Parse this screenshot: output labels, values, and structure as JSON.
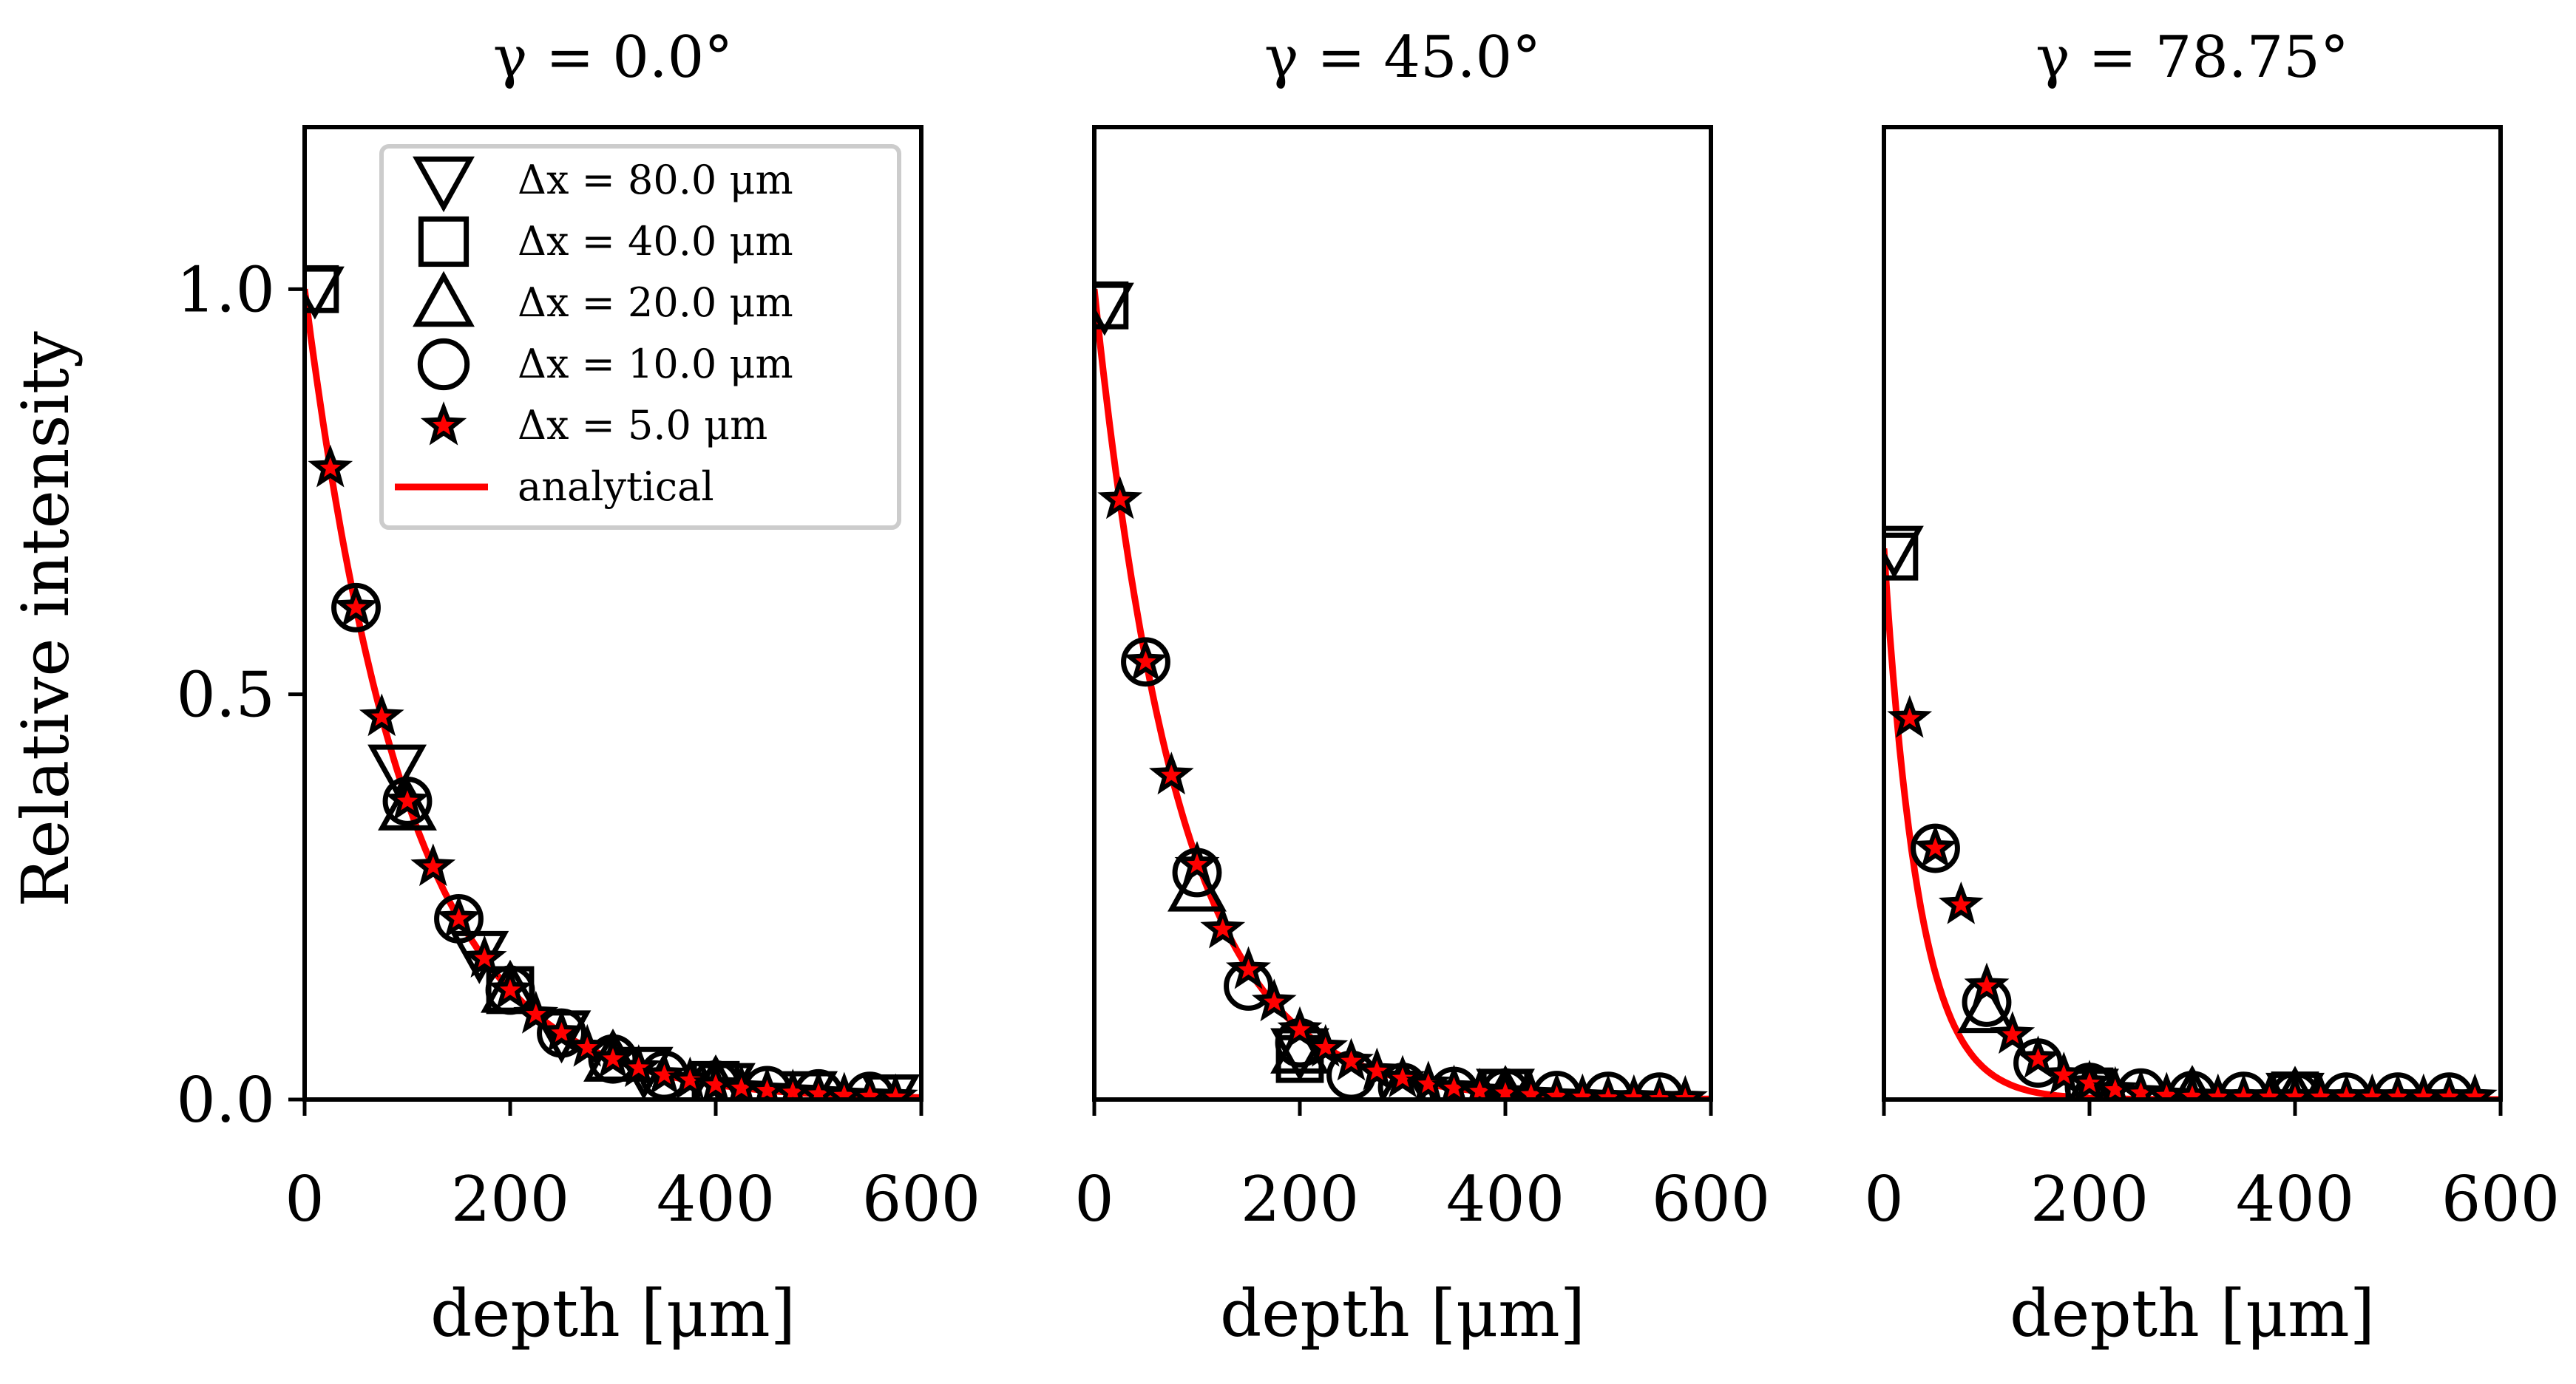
{
  "figure": {
    "ylabel": "Relative intensity",
    "xlabel": "depth [μm]"
  },
  "chart_data": [
    {
      "type": "scatter",
      "title": "γ = 0.0°",
      "xlabel": "depth [μm]",
      "ylabel": "Relative intensity",
      "xlim": [
        0,
        600
      ],
      "ylim": [
        0,
        1.2
      ],
      "xticks": [
        0,
        200,
        400,
        600
      ],
      "yticks": [
        0.0,
        0.5,
        1.0
      ],
      "xtick_labels": [
        "0",
        "200",
        "400",
        "600"
      ],
      "ytick_labels": [
        "0.0",
        "0.5",
        "1.0"
      ],
      "analytical": {
        "name": "analytical",
        "color": "#ff0000",
        "amplitude": 1.0,
        "decay_length_um": 100
      },
      "series": [
        {
          "name": "Δx = 80.0 μm",
          "marker": "triangle-down",
          "x": [
            10,
            90,
            170,
            250,
            330,
            410,
            490,
            570
          ],
          "y": [
            1.0,
            0.41,
            0.18,
            0.082,
            0.037,
            0.017,
            0.007,
            0.003
          ]
        },
        {
          "name": "Δx = 40.0 μm",
          "marker": "square",
          "x": [
            10,
            200,
            400
          ],
          "y": [
            1.0,
            0.135,
            0.018
          ]
        },
        {
          "name": "Δx = 20.0 μm",
          "marker": "triangle-up",
          "x": [
            100,
            200,
            300,
            400
          ],
          "y": [
            0.36,
            0.135,
            0.05,
            0.018
          ]
        },
        {
          "name": "Δx = 10.0 μm",
          "marker": "circle",
          "x": [
            50,
            100,
            150,
            200,
            250,
            300,
            350,
            400,
            450,
            500,
            550
          ],
          "y": [
            0.607,
            0.368,
            0.223,
            0.135,
            0.082,
            0.05,
            0.03,
            0.018,
            0.011,
            0.007,
            0.004
          ]
        },
        {
          "name": "Δx = 5.0 μm",
          "marker": "star",
          "x": [
            25,
            50,
            75,
            100,
            125,
            150,
            175,
            200,
            225,
            250,
            275,
            300,
            325,
            350,
            375,
            400,
            425,
            450,
            475,
            500,
            525,
            550,
            575
          ],
          "y": [
            0.779,
            0.607,
            0.472,
            0.368,
            0.287,
            0.223,
            0.174,
            0.135,
            0.105,
            0.082,
            0.064,
            0.05,
            0.039,
            0.03,
            0.024,
            0.018,
            0.014,
            0.011,
            0.009,
            0.007,
            0.005,
            0.004,
            0.003
          ]
        }
      ],
      "legend": {
        "placement": "upper-right",
        "entries": [
          {
            "label": "Δx = 80.0 μm",
            "marker": "triangle-down"
          },
          {
            "label": "Δx = 40.0 μm",
            "marker": "square"
          },
          {
            "label": "Δx = 20.0 μm",
            "marker": "triangle-up"
          },
          {
            "label": "Δx = 10.0 μm",
            "marker": "circle"
          },
          {
            "label": "Δx = 5.0 μm",
            "marker": "star"
          },
          {
            "label": "analytical",
            "marker": "line"
          }
        ]
      }
    },
    {
      "type": "scatter",
      "title": "γ = 45.0°",
      "xlabel": "depth [μm]",
      "xlim": [
        0,
        600
      ],
      "ylim": [
        0,
        1.2
      ],
      "xticks": [
        0,
        200,
        400,
        600
      ],
      "xtick_labels": [
        "0",
        "200",
        "400",
        "600"
      ],
      "analytical": {
        "name": "analytical",
        "color": "#ff0000",
        "amplitude": 1.0,
        "decay_length_um": 82
      },
      "series": [
        {
          "name": "Δx = 80.0 μm",
          "marker": "triangle-down",
          "x": [
            10,
            200,
            400
          ],
          "y": [
            0.98,
            0.06,
            0.01
          ]
        },
        {
          "name": "Δx = 40.0 μm",
          "marker": "square",
          "x": [
            10,
            200,
            400
          ],
          "y": [
            0.98,
            0.05,
            0.008
          ]
        },
        {
          "name": "Δx = 20.0 μm",
          "marker": "triangle-up",
          "x": [
            100,
            200,
            300,
            400
          ],
          "y": [
            0.26,
            0.06,
            0.015,
            0.005
          ]
        },
        {
          "name": "Δx = 10.0 μm",
          "marker": "circle",
          "x": [
            50,
            100,
            150,
            200,
            250,
            300,
            350,
            400,
            450,
            500,
            550
          ],
          "y": [
            0.54,
            0.28,
            0.14,
            0.07,
            0.03,
            0.015,
            0.01,
            0.008,
            0.005,
            0.004,
            0.003
          ]
        },
        {
          "name": "Δx = 5.0 μm",
          "marker": "star",
          "x": [
            25,
            50,
            75,
            100,
            125,
            150,
            175,
            200,
            225,
            250,
            275,
            300,
            325,
            350,
            375,
            400,
            425,
            450,
            475,
            500,
            525,
            550,
            575
          ],
          "y": [
            0.74,
            0.54,
            0.4,
            0.29,
            0.21,
            0.16,
            0.12,
            0.086,
            0.064,
            0.047,
            0.035,
            0.026,
            0.019,
            0.014,
            0.01,
            0.008,
            0.006,
            0.004,
            0.003,
            0.002,
            0.002,
            0.001,
            0.001
          ]
        }
      ]
    },
    {
      "type": "scatter",
      "title": "γ = 78.75°",
      "xlabel": "depth [μm]",
      "xlim": [
        0,
        600
      ],
      "ylim": [
        0,
        1.2
      ],
      "xticks": [
        0,
        200,
        400,
        600
      ],
      "xtick_labels": [
        "0",
        "200",
        "400",
        "600"
      ],
      "analytical": {
        "name": "analytical",
        "color": "#ff0000",
        "amplitude": 0.68,
        "decay_length_um": 34
      },
      "series": [
        {
          "name": "Δx = 80.0 μm",
          "marker": "triangle-down",
          "x": [
            10,
            200,
            400
          ],
          "y": [
            0.68,
            0.01,
            0.005
          ]
        },
        {
          "name": "Δx = 40.0 μm",
          "marker": "square",
          "x": [
            10,
            200,
            400
          ],
          "y": [
            0.67,
            0.01,
            0.005
          ]
        },
        {
          "name": "Δx = 20.0 μm",
          "marker": "triangle-up",
          "x": [
            100,
            200,
            300,
            400
          ],
          "y": [
            0.11,
            0.01,
            0.005,
            0.004
          ]
        },
        {
          "name": "Δx = 10.0 μm",
          "marker": "circle",
          "x": [
            50,
            100,
            150,
            200,
            250,
            300,
            350,
            400,
            450,
            500,
            550
          ],
          "y": [
            0.31,
            0.12,
            0.045,
            0.015,
            0.008,
            0.005,
            0.004,
            0.004,
            0.003,
            0.003,
            0.003
          ]
        },
        {
          "name": "Δx = 5.0 μm",
          "marker": "star",
          "x": [
            25,
            50,
            75,
            100,
            125,
            150,
            175,
            200,
            225,
            250,
            275,
            300,
            325,
            350,
            375,
            400,
            425,
            450,
            475,
            500,
            525,
            550,
            575
          ],
          "y": [
            0.47,
            0.31,
            0.24,
            0.14,
            0.08,
            0.05,
            0.03,
            0.02,
            0.012,
            0.008,
            0.005,
            0.004,
            0.003,
            0.003,
            0.003,
            0.003,
            0.003,
            0.003,
            0.003,
            0.003,
            0.003,
            0.003,
            0.003
          ]
        }
      ]
    }
  ]
}
